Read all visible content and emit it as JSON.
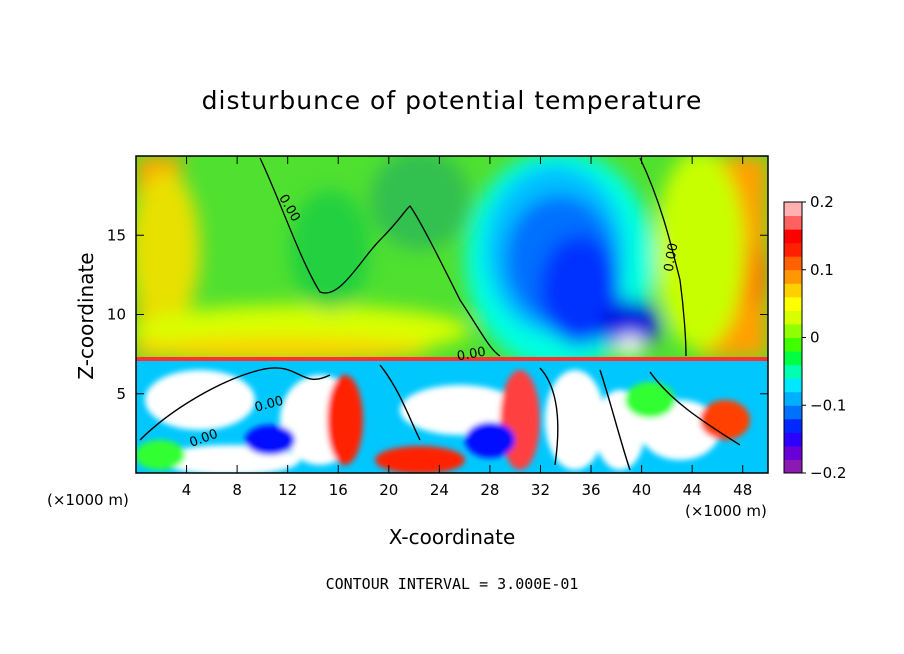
{
  "chart_data": {
    "type": "heatmap",
    "title": "disturbunce of potential temperature",
    "xlabel": "X-coordinate",
    "ylabel": "Z-coordinate",
    "x_unit": "(×1000 m)",
    "y_unit": "(×1000 m)",
    "xlim": [
      0,
      50
    ],
    "ylim": [
      0,
      20
    ],
    "x_ticks": [
      4,
      8,
      12,
      16,
      20,
      24,
      28,
      32,
      36,
      40,
      44,
      48
    ],
    "y_ticks": [
      5,
      10,
      15
    ],
    "colorbar": {
      "min": -0.2,
      "max": 0.2,
      "tick_values": [
        0.2,
        0.1,
        0,
        -0.1,
        -0.2
      ],
      "tick_labels": [
        "0.2",
        "0.1",
        "0",
        "−0.1",
        "−0.2"
      ],
      "colors": [
        "#8a1ab0",
        "#6a00d8",
        "#2a00ff",
        "#0028ff",
        "#0070ff",
        "#00b0ff",
        "#00e8ff",
        "#00ffb0",
        "#00ff40",
        "#40ff00",
        "#90ff00",
        "#d8ff00",
        "#ffff00",
        "#ffd000",
        "#ff9800",
        "#ff6000",
        "#ff2000",
        "#ff0000",
        "#ff6060",
        "#ffb0b0"
      ]
    },
    "contour_labels": [
      "0.00",
      "0.00",
      "0.00",
      "0.00",
      "0.00"
    ],
    "contour_interval_text": "CONTOUR INTERVAL = 3.000E-01"
  }
}
